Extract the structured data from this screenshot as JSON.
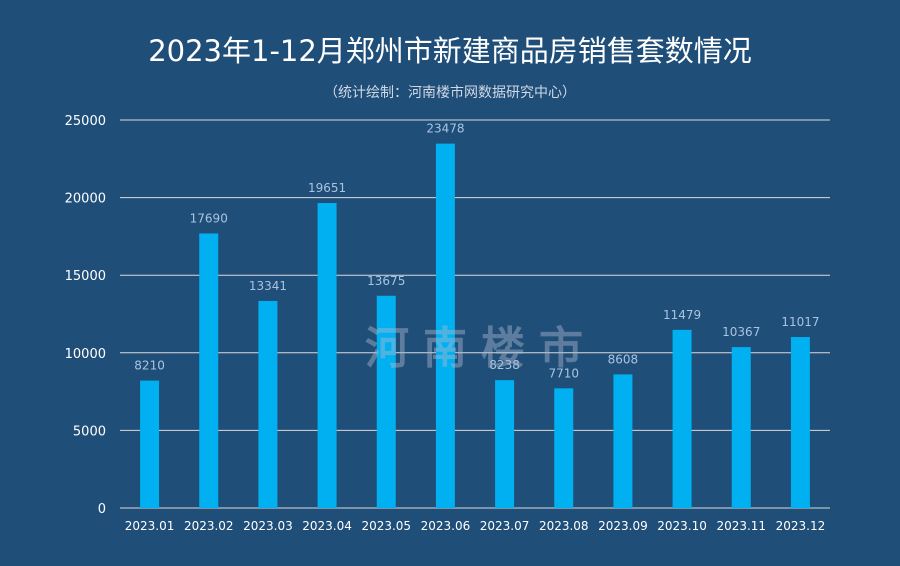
{
  "chart_data": {
    "type": "bar",
    "title": "2023年1-12月郑州市新建商品房销售套数情况",
    "subtitle": "（统计绘制：河南楼市网数据研究中心）",
    "categories": [
      "2023.01",
      "2023.02",
      "2023.03",
      "2023.04",
      "2023.05",
      "2023.06",
      "2023.07",
      "2023.08",
      "2023.09",
      "2023.10",
      "2023.11",
      "2023.12"
    ],
    "values": [
      8210,
      17690,
      13341,
      19651,
      13675,
      23478,
      8238,
      7710,
      8608,
      11479,
      10367,
      11017
    ],
    "ylim": [
      0,
      25000
    ],
    "yticks": [
      0,
      5000,
      10000,
      15000,
      20000,
      25000
    ],
    "grid": true,
    "xlabel": "",
    "ylabel": "",
    "colors": {
      "background": "#1f4e79",
      "bar": "#00b0f0",
      "data_label": "#a9c4e0",
      "grid": "#d9d9d9",
      "axis_text": "#ffffff"
    }
  },
  "watermark": "河南楼市"
}
